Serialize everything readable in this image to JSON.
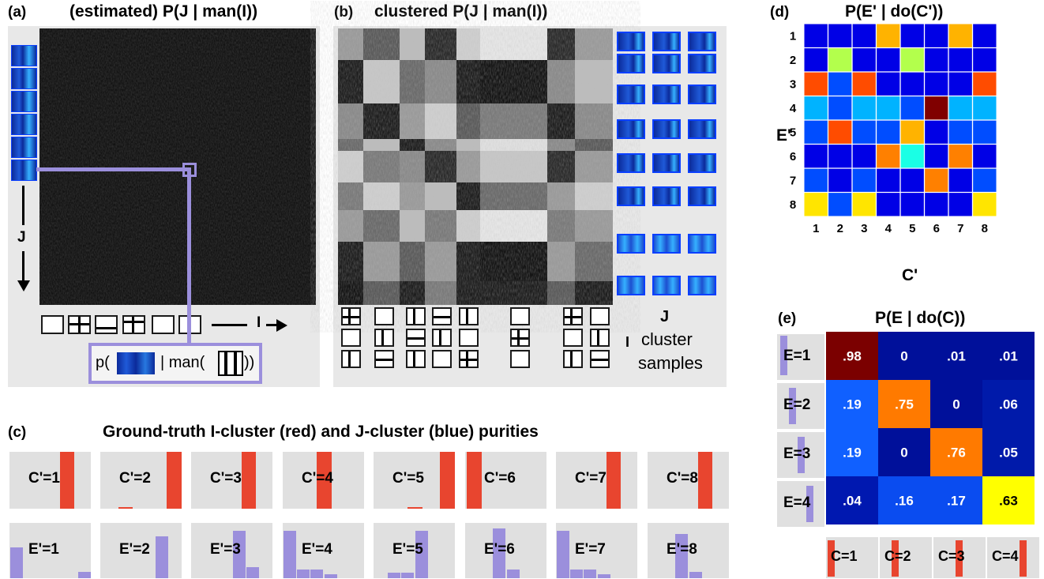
{
  "panel_a": {
    "label": "(a)",
    "title": "(estimated) P(J | man(I))",
    "j_axis": "J",
    "i_axis": "I",
    "caption_prefix": "p(",
    "caption_mid": "| man(",
    "caption_suffix": "))"
  },
  "panel_b": {
    "label": "(b)",
    "title": "clustered P(J | man(I))",
    "j_label": "J",
    "i_label": "I",
    "cluster_text": "cluster",
    "samples_text": "samples"
  },
  "panel_c": {
    "label": "(c)",
    "title": "Ground-truth I-cluster (red) and J-cluster (blue) purities",
    "c_labels": [
      "C'=1",
      "C'=2",
      "C'=3",
      "C'=4",
      "C'=5",
      "C'=6",
      "C'=7",
      "C'=8"
    ],
    "e_labels": [
      "E'=1",
      "E'=2",
      "E'=3",
      "E'=4",
      "E'=5",
      "E'=6",
      "E'=7",
      "E'=8"
    ],
    "red_color": "#e8452f",
    "blue_color": "#9b8fdc"
  },
  "panel_d": {
    "label": "(d)",
    "title": "P(E' | do(C'))",
    "xlabel": "C'",
    "ylabel": "E'",
    "x_ticks": [
      "1",
      "2",
      "3",
      "4",
      "5",
      "6",
      "7",
      "8"
    ],
    "y_ticks": [
      "1",
      "2",
      "3",
      "4",
      "5",
      "6",
      "7",
      "8"
    ]
  },
  "panel_e": {
    "label": "(e)",
    "title": "P(E | do(C))",
    "row_labels": [
      "E=1",
      "E=2",
      "E=3",
      "E=4"
    ],
    "col_labels": [
      "C=1",
      "C=2",
      "C=3",
      "C=4"
    ]
  },
  "chart_data": [
    {
      "type": "heatmap",
      "title": "P(E' | do(C'))",
      "xlabel": "C'",
      "ylabel": "E'",
      "x": [
        "1",
        "2",
        "3",
        "4",
        "5",
        "6",
        "7",
        "8"
      ],
      "y": [
        "1",
        "2",
        "3",
        "4",
        "5",
        "6",
        "7",
        "8"
      ],
      "values": [
        [
          0.1,
          0.1,
          0.1,
          0.7,
          0.1,
          0.1,
          0.7,
          0.1
        ],
        [
          0.1,
          0.55,
          0.1,
          0.1,
          0.55,
          0.1,
          0.1,
          0.1
        ],
        [
          0.8,
          0.2,
          0.8,
          0.1,
          0.1,
          0.1,
          0.1,
          0.8
        ],
        [
          0.3,
          0.2,
          0.3,
          0.3,
          0.2,
          1.0,
          0.3,
          0.3
        ],
        [
          0.2,
          0.8,
          0.2,
          0.2,
          0.7,
          0.1,
          0.2,
          0.2
        ],
        [
          0.1,
          0.1,
          0.1,
          0.75,
          0.4,
          0.1,
          0.75,
          0.1
        ],
        [
          0.2,
          0.1,
          0.2,
          0.1,
          0.1,
          0.75,
          0.1,
          0.2
        ],
        [
          0.65,
          0.2,
          0.65,
          0.1,
          0.1,
          0.1,
          0.1,
          0.65
        ]
      ]
    },
    {
      "type": "heatmap",
      "title": "P(E | do(C))",
      "x": [
        "C=1",
        "C=2",
        "C=3",
        "C=4"
      ],
      "y": [
        "E=1",
        "E=2",
        "E=3",
        "E=4"
      ],
      "values": [
        [
          0.98,
          0,
          0.01,
          0.01
        ],
        [
          0.19,
          0.75,
          0,
          0.06
        ],
        [
          0.19,
          0,
          0.76,
          0.05
        ],
        [
          0.04,
          0.16,
          0.17,
          0.63
        ]
      ],
      "cell_labels": [
        [
          ".98",
          "0",
          ".01",
          ".01"
        ],
        [
          ".19",
          ".75",
          "0",
          ".06"
        ],
        [
          ".19",
          "0",
          ".76",
          ".05"
        ],
        [
          ".04",
          ".16",
          ".17",
          ".63"
        ]
      ]
    },
    {
      "type": "bar",
      "title": "I-cluster purities (red)",
      "series": [
        {
          "name": "red",
          "groups": [
            [
              0,
              0,
              0,
              1,
              0
            ],
            [
              0,
              0.03,
              0,
              0,
              1
            ],
            [
              0,
              0,
              0,
              1,
              0
            ],
            [
              0,
              0,
              1,
              0,
              0
            ],
            [
              0,
              0,
              0.03,
              0,
              1
            ],
            [
              1,
              0,
              0,
              0,
              0
            ],
            [
              0,
              0,
              0,
              1,
              0
            ],
            [
              0,
              0,
              0,
              1,
              0
            ]
          ]
        }
      ]
    },
    {
      "type": "bar",
      "title": "J-cluster purities (blue)",
      "series": [
        {
          "name": "blue",
          "groups": [
            [
              0.55,
              0,
              0,
              0,
              0,
              0.12
            ],
            [
              0,
              0,
              0,
              0,
              0.75,
              0
            ],
            [
              0,
              0,
              0,
              0.85,
              0.2,
              0
            ],
            [
              0.85,
              0.15,
              0.15,
              0.07,
              0,
              0
            ],
            [
              0,
              0.1,
              0.1,
              0.85,
              0,
              0
            ],
            [
              0,
              0,
              0.9,
              0.15,
              0,
              0
            ],
            [
              0.85,
              0.15,
              0.15,
              0.07,
              0,
              0
            ],
            [
              0,
              0,
              0.8,
              0.12,
              0,
              0
            ]
          ]
        }
      ]
    }
  ]
}
